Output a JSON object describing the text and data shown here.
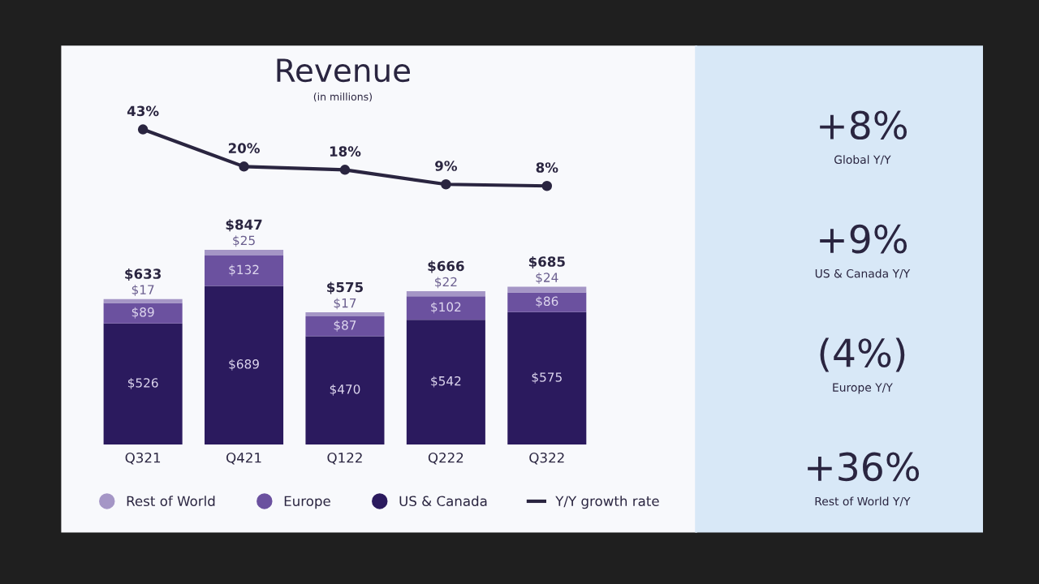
{
  "chart_data": [
    {
      "type": "bar",
      "stacked": true,
      "categories": [
        "Q321",
        "Q421",
        "Q122",
        "Q222",
        "Q322"
      ],
      "series": [
        {
          "name": "US & Canada",
          "color": "#2b1a5e",
          "values": [
            526,
            689,
            470,
            542,
            575
          ],
          "value_labels": [
            "$526",
            "$689",
            "$470",
            "$542",
            "$575"
          ]
        },
        {
          "name": "Europe",
          "color": "#6b519f",
          "values": [
            89,
            132,
            87,
            102,
            86
          ],
          "value_labels": [
            "$89",
            "$132",
            "$87",
            "$102",
            "$86"
          ]
        },
        {
          "name": "Rest of World",
          "color": "#a596c6",
          "values": [
            17,
            25,
            17,
            22,
            24
          ],
          "value_labels": [
            "$17",
            "$25",
            "$17",
            "$22",
            "$24"
          ]
        }
      ],
      "totals": [
        "$633",
        "$847",
        "$575",
        "$666",
        "$685"
      ],
      "tick_labels": "x",
      "grid": false,
      "legend": "bottom"
    },
    {
      "type": "line",
      "title": "Revenue",
      "subtitle": "(in millions)",
      "categories": [
        null,
        null,
        null,
        null,
        null
      ],
      "series": [
        {
          "name": "Y/Y growth rate",
          "color": "#2a2540",
          "values": [
            43,
            20,
            18,
            9,
            8
          ],
          "value_labels": [
            "43%",
            "20%",
            "18%",
            "9%",
            "8%"
          ]
        }
      ],
      "tick_labels": false,
      "marker": "circle",
      "line_style": "solid",
      "grid": false,
      "legend": "bottom"
    },
    {
      "type": "other",
      "annotations": [
        "+8%",
        "Global Y/Y",
        "+9%",
        "US & Canada Y/Y",
        "(4%)",
        "Europe Y/Y",
        "+36%",
        "Rest of World Y/Y"
      ]
    }
  ]
}
